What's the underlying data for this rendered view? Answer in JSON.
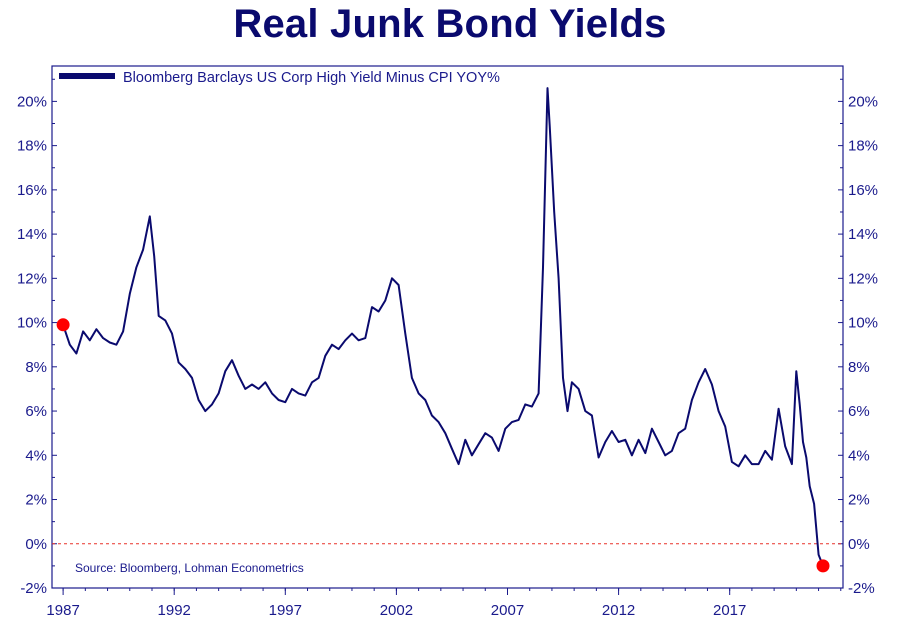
{
  "chart_data": {
    "type": "line",
    "title": "Real Junk Bond Yields",
    "xlabel": "",
    "ylabel": "",
    "source": "Source: Bloomberg, Lohman Econometrics",
    "series": [
      {
        "name": "Bloomberg Barclays US Corp High Yield Minus CPI YOY%",
        "color": "#0a0a6e",
        "x": [
          1987.0,
          1987.3,
          1987.6,
          1987.9,
          1988.2,
          1988.5,
          1988.8,
          1989.1,
          1989.4,
          1989.7,
          1990.0,
          1990.3,
          1990.6,
          1990.9,
          1991.1,
          1991.3,
          1991.6,
          1991.9,
          1992.2,
          1992.5,
          1992.8,
          1993.1,
          1993.4,
          1993.7,
          1994.0,
          1994.3,
          1994.6,
          1994.9,
          1995.2,
          1995.5,
          1995.8,
          1996.1,
          1996.4,
          1996.7,
          1997.0,
          1997.3,
          1997.6,
          1997.9,
          1998.2,
          1998.5,
          1998.8,
          1999.1,
          1999.4,
          1999.7,
          2000.0,
          2000.3,
          2000.6,
          2000.9,
          2001.2,
          2001.5,
          2001.8,
          2002.1,
          2002.4,
          2002.7,
          2003.0,
          2003.3,
          2003.6,
          2003.9,
          2004.2,
          2004.5,
          2004.8,
          2005.1,
          2005.4,
          2005.7,
          2006.0,
          2006.3,
          2006.6,
          2006.9,
          2007.2,
          2007.5,
          2007.8,
          2008.1,
          2008.4,
          2008.6,
          2008.8,
          2008.9,
          2009.1,
          2009.3,
          2009.5,
          2009.7,
          2009.9,
          2010.2,
          2010.5,
          2010.8,
          2011.1,
          2011.4,
          2011.7,
          2012.0,
          2012.3,
          2012.6,
          2012.9,
          2013.2,
          2013.5,
          2013.8,
          2014.1,
          2014.4,
          2014.7,
          2015.0,
          2015.3,
          2015.6,
          2015.9,
          2016.2,
          2016.5,
          2016.8,
          2017.1,
          2017.4,
          2017.7,
          2018.0,
          2018.3,
          2018.6,
          2018.9,
          2019.2,
          2019.5,
          2019.8,
          2020.0,
          2020.15,
          2020.3,
          2020.45,
          2020.6,
          2020.8,
          2021.0,
          2021.2
        ],
        "y": [
          9.9,
          9.0,
          8.6,
          9.6,
          9.2,
          9.7,
          9.3,
          9.1,
          9.0,
          9.6,
          11.3,
          12.5,
          13.3,
          14.8,
          13.0,
          10.3,
          10.1,
          9.5,
          8.2,
          7.9,
          7.5,
          6.5,
          6.0,
          6.3,
          6.8,
          7.8,
          8.3,
          7.6,
          7.0,
          7.2,
          7.0,
          7.3,
          6.8,
          6.5,
          6.4,
          7.0,
          6.8,
          6.7,
          7.3,
          7.5,
          8.5,
          9.0,
          8.8,
          9.2,
          9.5,
          9.2,
          9.3,
          10.7,
          10.5,
          11.0,
          12.0,
          11.7,
          9.5,
          7.5,
          6.8,
          6.5,
          5.8,
          5.5,
          5.0,
          4.3,
          3.6,
          4.7,
          4.0,
          4.5,
          5.0,
          4.8,
          4.2,
          5.2,
          5.5,
          5.6,
          6.3,
          6.2,
          6.8,
          12.5,
          20.6,
          18.9,
          15.0,
          12.0,
          7.5,
          6.0,
          7.3,
          7.0,
          6.0,
          5.8,
          3.9,
          4.6,
          5.1,
          4.6,
          4.7,
          4.0,
          4.7,
          4.1,
          5.2,
          4.6,
          4.0,
          4.2,
          5.0,
          5.2,
          6.5,
          7.3,
          7.9,
          7.2,
          6.0,
          5.3,
          3.7,
          3.5,
          4.0,
          3.6,
          3.6,
          4.2,
          3.8,
          6.1,
          4.4,
          3.6,
          7.8,
          6.3,
          4.6,
          3.9,
          2.6,
          1.8,
          -0.5,
          -1.0
        ]
      }
    ],
    "x_ticks": [
      "1987",
      "1992",
      "1997",
      "2002",
      "2007",
      "2012",
      "2017"
    ],
    "y_ticks": [
      "-2%",
      "0%",
      "2%",
      "4%",
      "6%",
      "8%",
      "10%",
      "12%",
      "14%",
      "16%",
      "18%",
      "20%"
    ],
    "xlim": [
      1986.5,
      2022.1
    ],
    "ylim": [
      -2.0,
      21.6
    ],
    "reference_line": {
      "y": 0,
      "color": "#e8322a",
      "style": "dashed"
    },
    "highlight_points": [
      {
        "x": 1987.0,
        "y": 9.9,
        "color": "#ff0000"
      },
      {
        "x": 2021.2,
        "y": -1.0,
        "color": "#ff0000"
      }
    ],
    "grid": false,
    "legend_position": "top-left"
  }
}
